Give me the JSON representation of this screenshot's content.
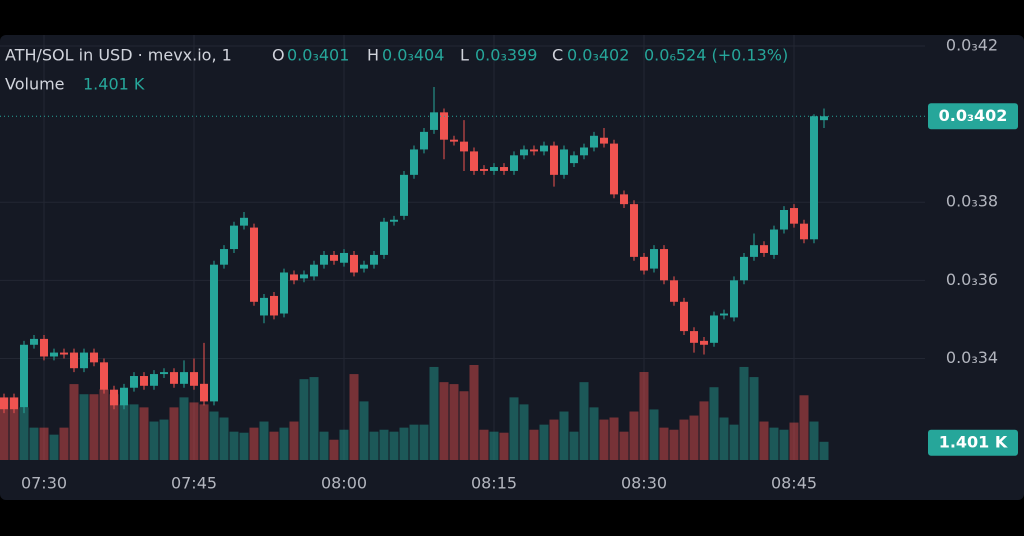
{
  "chart_data": {
    "type": "candlestick",
    "header": {
      "symbol": "ATH/SOL in USD · mevx.io, 1",
      "ohlc": [
        {
          "key": "O",
          "text": "0.0₃401"
        },
        {
          "key": "H",
          "text": "0.0₃404"
        },
        {
          "key": "L",
          "text": "0.0₃399"
        },
        {
          "key": "C",
          "text": "0.0₃402"
        }
      ],
      "change": "0.0₆524 (+0.13%)",
      "volume_title": "Volume",
      "volume_text": "1.401 K"
    },
    "categories": [
      null,
      null,
      null,
      null,
      "07:30",
      null,
      null,
      null,
      null,
      null,
      null,
      null,
      null,
      null,
      null,
      null,
      null,
      null,
      null,
      "07:45",
      null,
      null,
      null,
      null,
      null,
      null,
      null,
      null,
      null,
      null,
      null,
      null,
      null,
      null,
      "08:00",
      null,
      null,
      null,
      null,
      null,
      null,
      null,
      null,
      null,
      null,
      null,
      null,
      null,
      null,
      "08:15",
      null,
      null,
      null,
      null,
      null,
      null,
      null,
      null,
      null,
      null,
      null,
      null,
      null,
      null,
      "08:30",
      null,
      null,
      null,
      null,
      null,
      null,
      null,
      null,
      null,
      null,
      null,
      null,
      null,
      null,
      "08:45",
      null,
      null,
      null
    ],
    "open": [
      0.00033,
      0.00033,
      0.0003275,
      0.0003435,
      0.000345,
      0.0003405,
      0.0003415,
      0.0003415,
      0.0003375,
      0.0003415,
      0.000339,
      0.000332,
      0.000328,
      0.0003325,
      0.0003355,
      0.000333,
      0.000336,
      0.0003365,
      0.0003335,
      0.0003365,
      0.0003335,
      0.000329,
      0.000364,
      0.000368,
      0.000374,
      0.0003735,
      0.000351,
      0.000356,
      0.0003515,
      0.0003615,
      0.0003605,
      0.000361,
      0.000364,
      0.0003665,
      0.0003645,
      0.0003665,
      0.000363,
      0.000364,
      0.0003665,
      0.000375,
      0.0003765,
      0.000387,
      0.0003935,
      0.0003985,
      0.000403,
      0.000396,
      0.0003955,
      0.000393,
      0.0003885,
      0.000388,
      0.000389,
      0.000388,
      0.000392,
      0.0003935,
      0.000393,
      0.0003945,
      0.000387,
      0.00039,
      0.000392,
      0.000394,
      0.0003965,
      0.000395,
      0.000382,
      0.0003795,
      0.000366,
      0.000363,
      0.000368,
      0.00036,
      0.0003545,
      0.000347,
      0.0003445,
      0.000344,
      0.000351,
      0.0003505,
      0.00036,
      0.000366,
      0.000369,
      0.0003665,
      0.000373,
      0.0003785,
      0.0003745,
      0.0003705,
      0.000401
    ],
    "high": [
      0.000331,
      0.000331,
      0.0003445,
      0.000346,
      0.000346,
      0.0003425,
      0.0003425,
      0.0003425,
      0.0003425,
      0.0003425,
      0.00034,
      0.000333,
      0.0003335,
      0.0003365,
      0.0003365,
      0.000337,
      0.0003375,
      0.0003375,
      0.0003395,
      0.00034,
      0.000344,
      0.000365,
      0.000369,
      0.000375,
      0.0003775,
      0.0003745,
      0.0003565,
      0.000357,
      0.000363,
      0.0003625,
      0.0003625,
      0.000365,
      0.0003675,
      0.0003675,
      0.000368,
      0.0003675,
      0.000365,
      0.0003675,
      0.000376,
      0.0003765,
      0.000388,
      0.0003945,
      0.000399,
      0.0004095,
      0.000404,
      0.000397,
      0.000401,
      0.000394,
      0.0003895,
      0.00039,
      0.00039,
      0.000393,
      0.0003945,
      0.0003945,
      0.0003955,
      0.0003955,
      0.0003945,
      0.000393,
      0.000395,
      0.000398,
      0.000399,
      0.000396,
      0.000383,
      0.0003805,
      0.000367,
      0.000369,
      0.000369,
      0.000361,
      0.0003555,
      0.000348,
      0.0003455,
      0.000352,
      0.0003525,
      0.000361,
      0.000367,
      0.000372,
      0.00037,
      0.000374,
      0.000379,
      0.0003795,
      0.0003755,
      0.0004025,
      0.000404
    ],
    "low": [
      0.000326,
      0.000326,
      0.000326,
      0.0003425,
      0.0003395,
      0.0003395,
      0.00034,
      0.0003365,
      0.0003365,
      0.000338,
      0.000331,
      0.000327,
      0.000327,
      0.0003315,
      0.000332,
      0.000332,
      0.000335,
      0.0003325,
      0.0003325,
      0.000332,
      0.000328,
      0.000328,
      0.000363,
      0.000367,
      0.000373,
      0.0003535,
      0.000349,
      0.00035,
      0.0003505,
      0.000359,
      0.0003595,
      0.00036,
      0.000363,
      0.000364,
      0.0003635,
      0.000361,
      0.000362,
      0.000363,
      0.0003655,
      0.000374,
      0.0003755,
      0.000386,
      0.0003925,
      0.0003975,
      0.000391,
      0.0003945,
      0.000388,
      0.000387,
      0.000387,
      0.000387,
      0.000387,
      0.000387,
      0.000391,
      0.000392,
      0.000392,
      0.000384,
      0.000386,
      0.000389,
      0.000391,
      0.000393,
      0.000394,
      0.000381,
      0.0003785,
      0.000365,
      0.0003615,
      0.000362,
      0.000359,
      0.0003535,
      0.000346,
      0.0003415,
      0.000341,
      0.000343,
      0.00035,
      0.0003495,
      0.000359,
      0.000365,
      0.000366,
      0.0003655,
      0.000372,
      0.0003735,
      0.0003695,
      0.0003695,
      0.000399
    ],
    "close": [
      0.000327,
      0.000327,
      0.0003435,
      0.000345,
      0.0003405,
      0.0003415,
      0.000341,
      0.0003375,
      0.0003415,
      0.000339,
      0.000332,
      0.000328,
      0.0003325,
      0.0003355,
      0.000333,
      0.000336,
      0.0003365,
      0.0003335,
      0.0003365,
      0.000333,
      0.000329,
      0.000364,
      0.000368,
      0.000374,
      0.000376,
      0.0003545,
      0.0003555,
      0.000351,
      0.000362,
      0.00036,
      0.0003615,
      0.000364,
      0.0003665,
      0.000365,
      0.000367,
      0.000362,
      0.000364,
      0.0003665,
      0.000375,
      0.0003755,
      0.000387,
      0.0003935,
      0.000398,
      0.000403,
      0.000396,
      0.0003955,
      0.000393,
      0.000388,
      0.000388,
      0.000389,
      0.000388,
      0.000392,
      0.0003935,
      0.000393,
      0.0003945,
      0.000387,
      0.0003935,
      0.000392,
      0.000394,
      0.000397,
      0.000395,
      0.000382,
      0.0003795,
      0.000366,
      0.0003625,
      0.000368,
      0.00036,
      0.0003545,
      0.000347,
      0.000344,
      0.0003435,
      0.000351,
      0.0003515,
      0.00036,
      0.000366,
      0.000369,
      0.000367,
      0.000373,
      0.000378,
      0.0003745,
      0.0003705,
      0.000402,
      0.000402
    ],
    "volume": [
      4.82,
      4.82,
      4.05,
      2.49,
      2.49,
      1.95,
      2.49,
      5.84,
      5.06,
      5.06,
      5.45,
      5.06,
      4.28,
      4.28,
      4.05,
      2.96,
      3.11,
      4.05,
      4.82,
      4.43,
      4.28,
      3.73,
      3.27,
      2.18,
      2.1,
      2.49,
      2.96,
      2.18,
      2.49,
      2.96,
      6.22,
      6.38,
      2.18,
      1.56,
      2.33,
      6.61,
      4.51,
      2.18,
      2.33,
      2.18,
      2.49,
      2.72,
      2.72,
      7.16,
      5.99,
      5.84,
      5.29,
      7.31,
      2.33,
      2.18,
      2.1,
      4.82,
      4.28,
      2.33,
      2.72,
      3.11,
      3.73,
      2.18,
      5.99,
      4.05,
      3.11,
      3.27,
      2.18,
      3.73,
      6.77,
      3.89,
      2.49,
      2.33,
      3.11,
      3.42,
      4.51,
      5.6,
      3.27,
      2.72,
      7.16,
      6.38,
      2.96,
      2.49,
      2.33,
      2.88,
      4.98,
      2.96,
      1.401
    ],
    "last_close_label": "0.0₃402",
    "last_volume_label": "1.401 K",
    "up_color": "#26a69a",
    "down_color": "#ef5350",
    "ylim": [
      0.000314,
      0.0004228
    ],
    "yticks": [
      {
        "value": 0.00042,
        "label": "0.0₃42"
      },
      {
        "value": 0.00038,
        "label": "0.0₃38"
      },
      {
        "value": 0.00036,
        "label": "0.0₃36"
      },
      {
        "value": 0.00034,
        "label": "0.0₃34"
      }
    ],
    "grid": true
  }
}
